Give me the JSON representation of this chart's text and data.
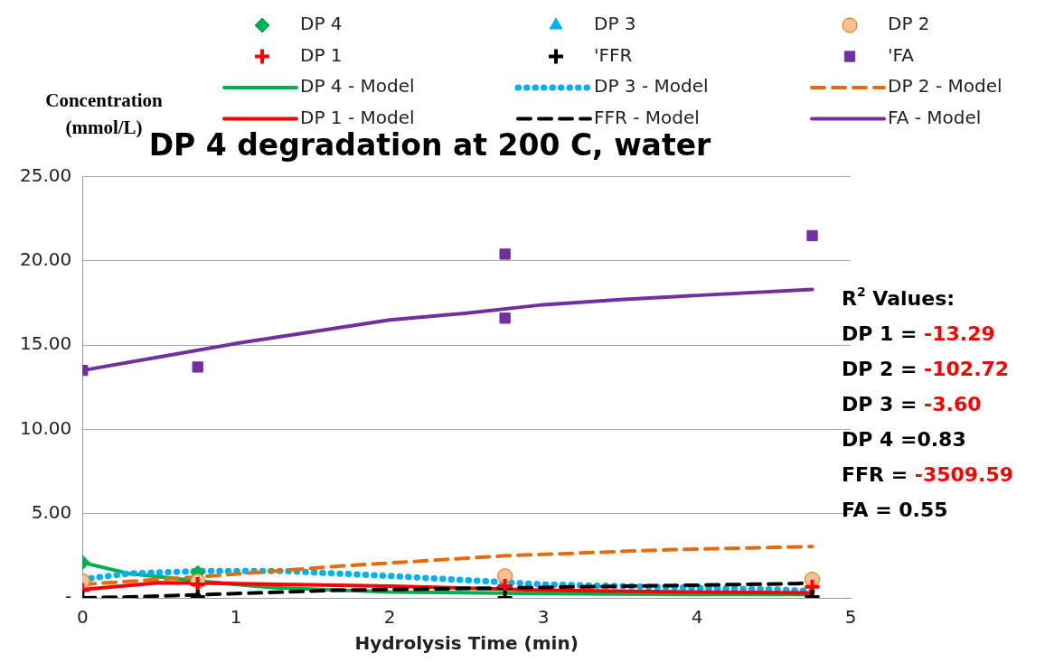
{
  "chart_data": {
    "type": "scatter",
    "title": "DP 4 degradation at 200 C, water",
    "xlabel": "Hydrolysis Time (min)",
    "ylabel": "Concentration (mmol/L)",
    "xlim": [
      0,
      5
    ],
    "xticks": [
      0,
      1,
      2,
      3,
      4,
      5
    ],
    "ylim": [
      0,
      25
    ],
    "yticks": [
      {
        "value": 0,
        "label": "-"
      },
      {
        "value": 5,
        "label": "5.00"
      },
      {
        "value": 10,
        "label": "10.00"
      },
      {
        "value": 15,
        "label": "15.00"
      },
      {
        "value": 20,
        "label": "20.00"
      },
      {
        "value": 25,
        "label": "25.00"
      }
    ],
    "grid": "y",
    "legend": "top",
    "series": [
      {
        "name": "DP 4",
        "type": "scatter",
        "marker": "diamond",
        "color": "#00b050",
        "x": [
          0,
          0.75
        ],
        "values": [
          2.1,
          1.5
        ]
      },
      {
        "name": "DP 3",
        "type": "scatter",
        "marker": "triangle",
        "color": "#00b0f0"
      },
      {
        "name": "DP 2",
        "type": "scatter",
        "marker": "circle",
        "color": "#f8c090",
        "x": [
          0,
          0.75,
          2.75,
          4.75
        ],
        "values": [
          1.0,
          1.0,
          1.3,
          1.1
        ]
      },
      {
        "name": "DP 1",
        "type": "scatter",
        "marker": "cross",
        "color": "#ff0000",
        "x": [
          0,
          0.75,
          2.75,
          4.75
        ],
        "values": [
          0.45,
          0.8,
          0.7,
          0.65
        ]
      },
      {
        "name": "'FFR",
        "type": "scatter",
        "marker": "cross",
        "color": "#000000",
        "x": [
          0,
          0.75,
          2.75,
          4.75
        ],
        "values": [
          0.0,
          0.05,
          0.0,
          0.05
        ]
      },
      {
        "name": "'FA",
        "type": "scatter",
        "marker": "square",
        "color": "#7030a0",
        "x": [
          0,
          0.75,
          2.75,
          2.75,
          4.75
        ],
        "values": [
          13.5,
          13.7,
          20.4,
          16.6,
          21.5
        ]
      },
      {
        "name": "DP 4 - Model",
        "type": "line",
        "marker": "none",
        "line_style": "solid",
        "color": "#00b050",
        "x": [
          0,
          0.3,
          0.75,
          1.25,
          2,
          3,
          4,
          4.75
        ],
        "values": [
          2.1,
          1.45,
          1.0,
          0.6,
          0.35,
          0.25,
          0.2,
          0.2
        ]
      },
      {
        "name": "DP 3 - Model",
        "type": "line",
        "marker": "none",
        "line_style": "dotted",
        "color": "#00b0f0",
        "x": [
          0,
          0.3,
          0.8,
          1.3,
          2.0,
          3.0,
          4.5,
          4.75
        ],
        "values": [
          1.1,
          1.45,
          1.6,
          1.6,
          1.3,
          0.8,
          0.5,
          0.4
        ]
      },
      {
        "name": "DP 2 - Model",
        "type": "line",
        "marker": "none",
        "line_style": "dashed",
        "color": "#e46c0a",
        "x": [
          0,
          0.84,
          1.7,
          2.75,
          3.8,
          4.52,
          4.75
        ],
        "values": [
          0.8,
          1.3,
          1.9,
          2.5,
          2.85,
          3.0,
          3.05
        ]
      },
      {
        "name": "DP 1 - Model",
        "type": "line",
        "marker": "none",
        "line_style": "solid",
        "color": "#ff0000",
        "x": [
          0,
          0.5,
          1,
          2,
          3,
          4,
          4.75
        ],
        "values": [
          0.5,
          0.9,
          0.85,
          0.7,
          0.45,
          0.35,
          0.3
        ]
      },
      {
        "name": "FFR - Model",
        "type": "line",
        "marker": "none",
        "line_style": "dashed",
        "color": "#000000",
        "x": [
          0,
          0.3,
          1.66,
          2.45,
          3.18,
          3.96,
          4.65,
          4.75
        ],
        "values": [
          0.0,
          0.05,
          0.45,
          0.55,
          0.65,
          0.75,
          0.85,
          0.9
        ]
      },
      {
        "name": "FA - Model",
        "type": "line",
        "marker": "none",
        "line_style": "solid",
        "color": "#7030a0",
        "x": [
          0,
          0.5,
          1,
          1.5,
          2,
          2.5,
          3,
          3.5,
          4,
          4.75
        ],
        "values": [
          13.5,
          14.3,
          15.1,
          15.8,
          16.5,
          16.9,
          17.4,
          17.7,
          17.95,
          18.3
        ]
      }
    ],
    "annotations": [
      "R$^{2}$ Values:",
      "DP 1 = -13.29",
      "DP 2 = -102.72",
      "DP 3 = -3.60",
      "DP 4 =0.83",
      "FFR = -3509.59",
      "FA = 0.55"
    ]
  }
}
